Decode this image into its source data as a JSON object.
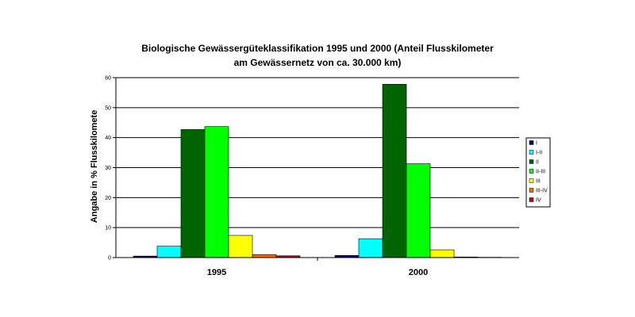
{
  "chart_data": {
    "type": "bar",
    "title": "Biologische Gewässergüteklassifikation 1995 und 2000 (Anteil Flusskilometer am Gewässernetz von ca. 30.000 km)",
    "title_lines": [
      "Biologische Gewässergüteklassifikation 1995 und 2000 (Anteil Flusskilometer",
      "am Gewässernetz von ca. 30.000 km)"
    ],
    "xlabel": "",
    "ylabel": "Angabe in % Flusskilomete",
    "ylim": [
      0,
      60
    ],
    "yticks": [
      0,
      10,
      20,
      30,
      40,
      50,
      60
    ],
    "grid": true,
    "legend_position": "right",
    "categories": [
      "1995",
      "2000"
    ],
    "series": [
      {
        "name": "I",
        "color": "#000080",
        "values": [
          0.5,
          0.7
        ]
      },
      {
        "name": "I-II",
        "color": "#00FFFF",
        "values": [
          3.8,
          6.3
        ]
      },
      {
        "name": "II",
        "color": "#006400",
        "values": [
          42.7,
          57.8
        ]
      },
      {
        "name": "II-III",
        "color": "#00FF00",
        "values": [
          43.7,
          31.3
        ]
      },
      {
        "name": "III",
        "color": "#FFFF00",
        "values": [
          7.4,
          2.6
        ]
      },
      {
        "name": "III-IV",
        "color": "#FF6600",
        "values": [
          1.0,
          0.2
        ]
      },
      {
        "name": "IV",
        "color": "#CC0000",
        "values": [
          0.6,
          0.1
        ]
      }
    ]
  }
}
